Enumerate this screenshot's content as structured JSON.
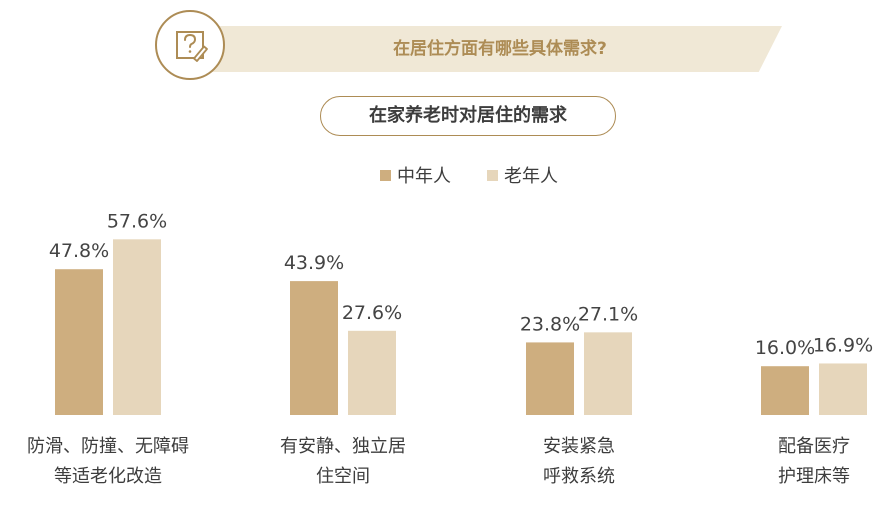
{
  "banner": {
    "title": "在居住方面有哪些具体需求?",
    "icon": "question-edit-icon"
  },
  "subtitle": "在家养老时对居住的需求",
  "colors": {
    "accent": "#ad8c55",
    "series_middle": "#ceae7f",
    "series_old": "#e6d6bb",
    "band": "#f0e8d6"
  },
  "chart_data": {
    "type": "bar",
    "title": "在家养老时对居住的需求",
    "categories": [
      [
        "防滑、防撞、无障碍",
        "等适老化改造"
      ],
      [
        "有安静、独立居",
        "住空间"
      ],
      [
        "安装紧急",
        "呼救系统"
      ],
      [
        "配备医疗",
        "护理床等"
      ]
    ],
    "series": [
      {
        "name": "中年人",
        "color": "#ceae7f",
        "values": [
          47.8,
          43.9,
          23.8,
          16.0
        ],
        "labels": [
          "47.8%",
          "43.9%",
          "23.8%",
          "16.0%"
        ]
      },
      {
        "name": "老年人",
        "color": "#e6d6bb",
        "values": [
          57.6,
          27.6,
          27.1,
          16.9
        ],
        "labels": [
          "57.6%",
          "27.6%",
          "27.1%",
          "16.9%"
        ]
      }
    ],
    "ylim": [
      0,
      65
    ],
    "legend": "top-center",
    "grid": false
  }
}
